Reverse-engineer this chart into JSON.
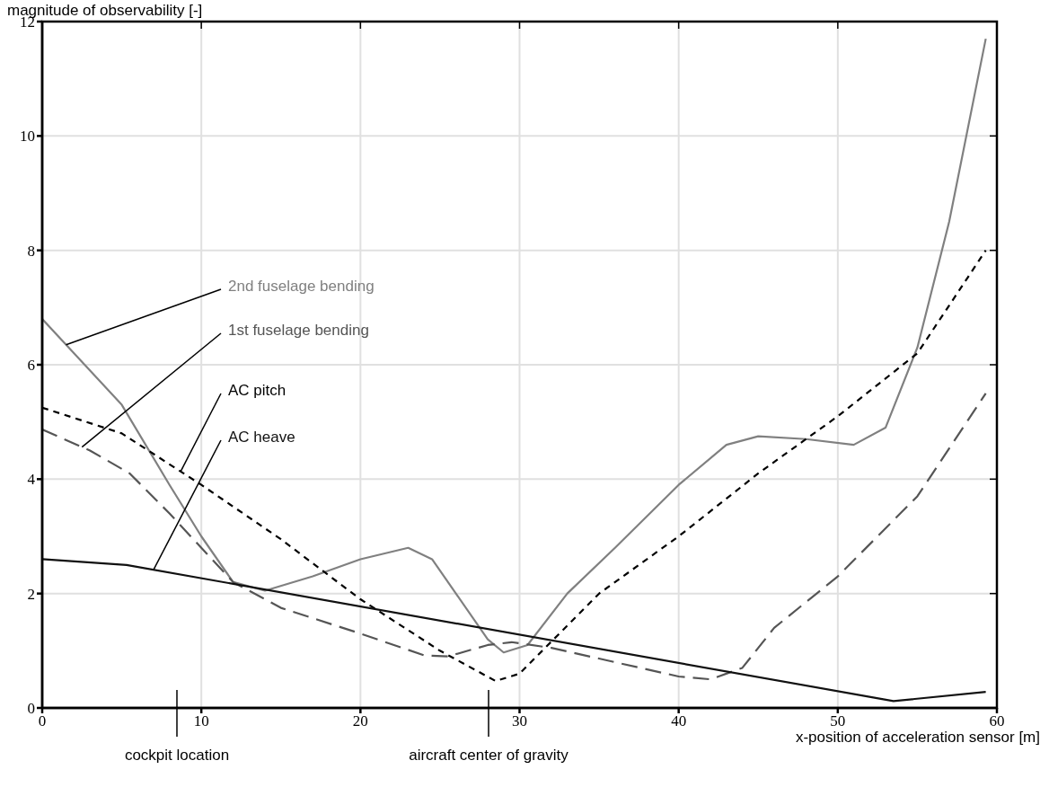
{
  "chart_data": {
    "type": "line",
    "xlabel": "x-position of acceleration sensor [m]",
    "ylabel": "magnitude of observability [-]",
    "xlim": [
      0,
      60
    ],
    "xticks": [
      0,
      10,
      20,
      30,
      40,
      50,
      60
    ],
    "ylim": [
      0,
      12
    ],
    "yticks": [
      0,
      2,
      4,
      6,
      8,
      10,
      12
    ],
    "grid": true,
    "marker": "none",
    "series": [
      {
        "name": "2nd fuselage bending",
        "color": "#808080",
        "line_style": "solid",
        "x": [
          0,
          2,
          5,
          8,
          10,
          12,
          14,
          17,
          20,
          23,
          24.5,
          26,
          28,
          29,
          30.5,
          33,
          36,
          40,
          43,
          45,
          48,
          51,
          53,
          55,
          57,
          59.3
        ],
        "values": [
          6.8,
          6.2,
          5.3,
          3.9,
          3.0,
          2.2,
          2.05,
          2.3,
          2.6,
          2.8,
          2.6,
          2.0,
          1.2,
          0.97,
          1.1,
          2.0,
          2.8,
          3.9,
          4.6,
          4.75,
          4.7,
          4.6,
          4.9,
          6.3,
          8.5,
          11.7
        ]
      },
      {
        "name": "1st fuselage bending",
        "color": "#555555",
        "line_style": "dashed",
        "x": [
          0,
          3,
          5.5,
          8,
          10,
          12,
          15,
          20,
          24,
          25.5,
          28,
          29.5,
          32,
          36,
          40,
          42,
          44,
          46,
          50,
          55,
          59.3
        ],
        "values": [
          4.87,
          4.5,
          4.1,
          3.4,
          2.8,
          2.2,
          1.75,
          1.3,
          0.92,
          0.9,
          1.1,
          1.15,
          1.05,
          0.8,
          0.55,
          0.5,
          0.7,
          1.4,
          2.3,
          3.7,
          5.5
        ]
      },
      {
        "name": "AC pitch",
        "color": "#000000",
        "line_style": "dotted",
        "x": [
          0,
          5,
          10,
          15,
          20,
          25,
          28.5,
          30,
          35,
          40,
          45,
          50,
          55,
          59.3
        ],
        "values": [
          5.25,
          4.8,
          3.9,
          2.95,
          1.9,
          1.0,
          0.47,
          0.6,
          2.0,
          3.0,
          4.1,
          5.1,
          6.2,
          8.0
        ]
      },
      {
        "name": "AC heave",
        "color": "#111111",
        "line_style": "solid",
        "x": [
          0,
          5.3,
          53.5,
          59.3
        ],
        "values": [
          2.6,
          2.5,
          0.12,
          0.28
        ]
      }
    ],
    "annotations": [
      "cockpit location",
      "aircraft center of gravity"
    ]
  }
}
